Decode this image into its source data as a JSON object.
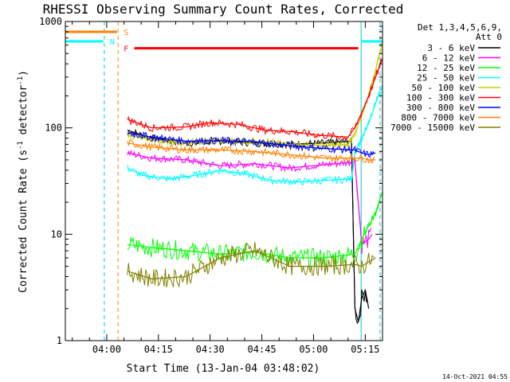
{
  "chart_data": {
    "type": "line",
    "title": "RHESSI Observing Summary Count Rates, Corrected",
    "xlabel": "Start Time (13-Jan-04 03:48:02)",
    "ylabel_main": "Corrected Count Rate (s",
    "ylabel_sup": "-1",
    "ylabel_tail": " detector",
    "ylabel_end": ")",
    "yscale": "log",
    "ylim": [
      1,
      1000
    ],
    "xlim_minutes": [
      0,
      92
    ],
    "x_ticks": [
      {
        "m": 12,
        "label": "04:00"
      },
      {
        "m": 27,
        "label": "04:15"
      },
      {
        "m": 42,
        "label": "04:30"
      },
      {
        "m": 57,
        "label": "04:45"
      },
      {
        "m": 72,
        "label": "05:00"
      },
      {
        "m": 87,
        "label": "05:15"
      }
    ],
    "y_ticks": [
      {
        "v": 1,
        "label": "1"
      },
      {
        "v": 10,
        "label": "10"
      },
      {
        "v": 100,
        "label": "100"
      },
      {
        "v": 1000,
        "label": "1000"
      }
    ],
    "legend_title": "Det 1,3,4,5,6,9,",
    "legend_subtitle": "Att 0",
    "legend_position": "right",
    "flags": {
      "S": {
        "label": "S",
        "color": "#ff8000",
        "y": 800,
        "segments": [
          [
            0,
            15
          ]
        ]
      },
      "N": {
        "label": "N",
        "color": "#00ffff",
        "y": 650,
        "segments": [
          [
            0,
            11
          ],
          [
            86,
            92
          ]
        ]
      },
      "F": {
        "label": "F",
        "color": "#ff0000",
        "y": 560,
        "segments": [
          [
            20,
            85
          ]
        ]
      }
    },
    "vlines": [
      {
        "m": 11.3,
        "color": "#00cccc",
        "dash": true
      },
      {
        "m": 15.3,
        "color": "#ff8000",
        "dash": true
      },
      {
        "m": 85.8,
        "color": "#00cccc",
        "dash": false
      },
      {
        "m": 91.3,
        "color": "#00cccc",
        "dash": true
      }
    ],
    "series": [
      {
        "name": "3 - 6 keV",
        "color": "#000000",
        "x": [
          18,
          25,
          35,
          45,
          55,
          65,
          75,
          83,
          84,
          85,
          86,
          87,
          88
        ],
        "y": [
          95,
          80,
          72,
          75,
          72,
          70,
          72,
          75,
          2,
          1.5,
          2.5,
          3,
          2
        ]
      },
      {
        "name": "6 - 12 keV",
        "color": "#ff00ff",
        "x": [
          18,
          25,
          35,
          45,
          55,
          65,
          75,
          84,
          86,
          88,
          89
        ],
        "y": [
          58,
          52,
          50,
          44,
          46,
          42,
          45,
          48,
          8,
          9,
          10
        ]
      },
      {
        "name": "12 - 25 keV",
        "color": "#00ff00",
        "x": [
          18,
          25,
          35,
          45,
          55,
          65,
          75,
          84,
          86,
          88,
          90,
          92
        ],
        "y": [
          8,
          7.5,
          7,
          6.5,
          6.8,
          6,
          6,
          6.5,
          9,
          12,
          16,
          25
        ]
      },
      {
        "name": "25 - 50 keV",
        "color": "#00ffff",
        "x": [
          18,
          22,
          30,
          38,
          45,
          52,
          60,
          68,
          75,
          83,
          84,
          86,
          88,
          90,
          92
        ],
        "y": [
          42,
          36,
          33,
          36,
          40,
          37,
          32,
          31,
          32,
          33,
          60,
          80,
          110,
          170,
          250
        ]
      },
      {
        "name": "50 - 100 keV",
        "color": "#cccc00",
        "x": [
          18,
          25,
          35,
          45,
          55,
          65,
          75,
          82,
          84,
          86,
          88,
          90,
          92
        ],
        "y": [
          85,
          78,
          72,
          76,
          75,
          70,
          68,
          70,
          90,
          130,
          200,
          350,
          650
        ]
      },
      {
        "name": "100 - 300 keV",
        "color": "#ff0000",
        "x": [
          18,
          25,
          35,
          42,
          50,
          58,
          66,
          74,
          82,
          84,
          86,
          88,
          90,
          92
        ],
        "y": [
          120,
          100,
          102,
          112,
          108,
          95,
          92,
          85,
          82,
          100,
          140,
          200,
          300,
          450
        ]
      },
      {
        "name": "300 - 800 keV",
        "color": "#0000ff",
        "x": [
          18,
          25,
          35,
          45,
          55,
          65,
          75,
          84,
          86,
          88,
          90
        ],
        "y": [
          90,
          82,
          75,
          76,
          74,
          68,
          64,
          62,
          58,
          56,
          58
        ]
      },
      {
        "name": "800 - 7000 keV",
        "color": "#ff8000",
        "x": [
          18,
          25,
          35,
          45,
          55,
          65,
          75,
          84,
          86,
          88,
          90
        ],
        "y": [
          72,
          66,
          62,
          62,
          60,
          56,
          52,
          52,
          52,
          50,
          50
        ]
      },
      {
        "name": "7000 - 15000 keV",
        "color": "#808000",
        "x": [
          18,
          25,
          35,
          45,
          55,
          65,
          75,
          84,
          86,
          88,
          90
        ],
        "y": [
          4.5,
          3.8,
          4,
          6,
          7,
          5,
          5,
          5.2,
          5,
          5.5,
          6
        ]
      }
    ],
    "footer_date": "14-Oct-2021 04:55"
  }
}
